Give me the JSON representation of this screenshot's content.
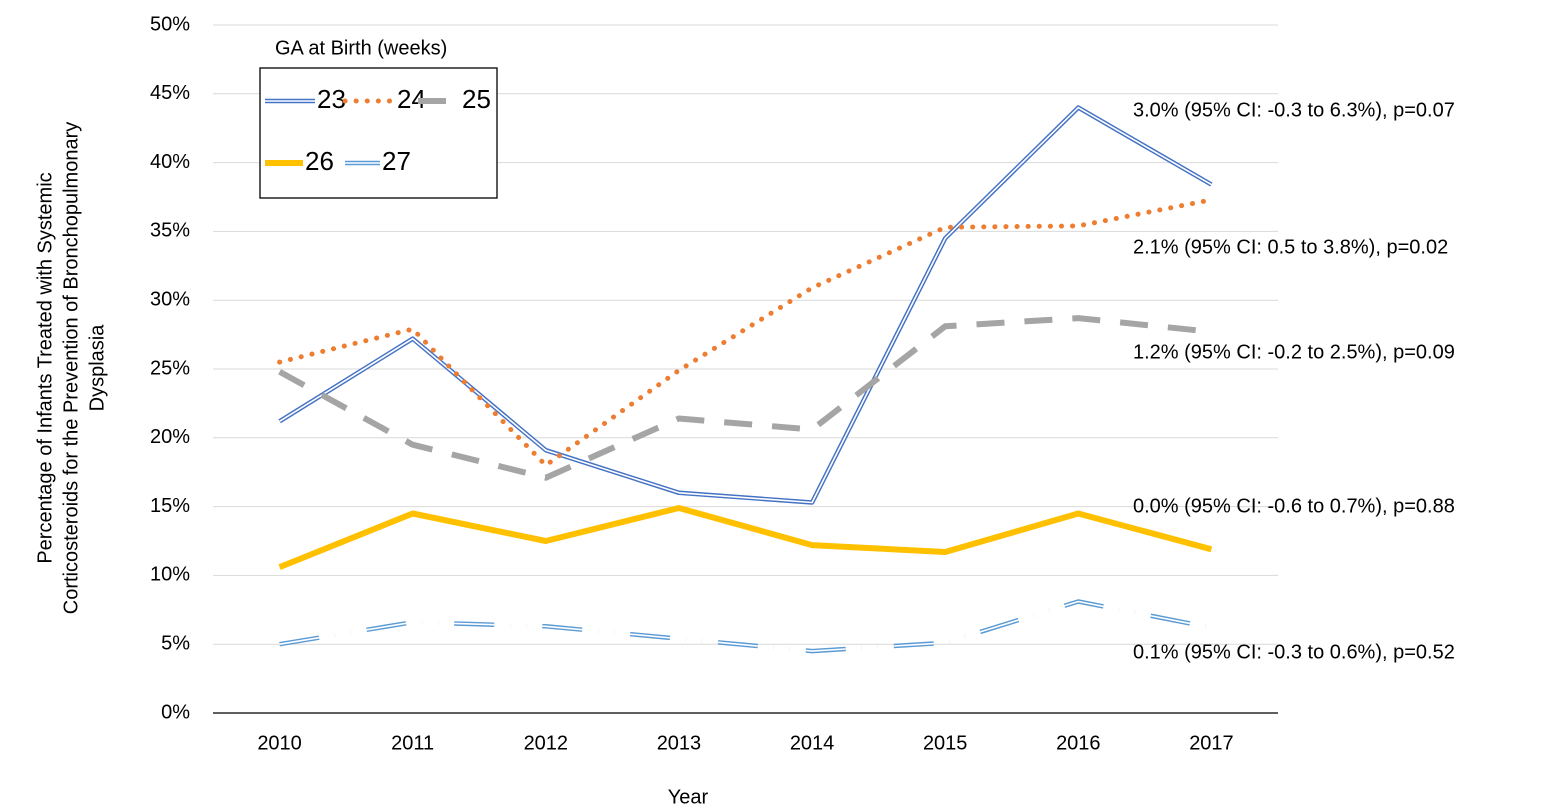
{
  "chart_data": {
    "type": "line",
    "xlabel": "Year",
    "ylabel": [
      "Percentage of Infants Treated with Systemic",
      "Corticosteroids for the Prevention of Bronchopulmonary",
      "Dysplasia"
    ],
    "categories": [
      "2010",
      "2011",
      "2012",
      "2013",
      "2014",
      "2015",
      "2016",
      "2017"
    ],
    "ylim": [
      0,
      50
    ],
    "yticks": [
      {
        "value": 0,
        "label": "0%"
      },
      {
        "value": 5,
        "label": "5%"
      },
      {
        "value": 10,
        "label": "10%"
      },
      {
        "value": 15,
        "label": "15%"
      },
      {
        "value": 20,
        "label": "20%"
      },
      {
        "value": 25,
        "label": "25%"
      },
      {
        "value": 30,
        "label": "30%"
      },
      {
        "value": 35,
        "label": "35%"
      },
      {
        "value": 40,
        "label": "40%"
      },
      {
        "value": 45,
        "label": "45%"
      },
      {
        "value": 50,
        "label": "50%"
      }
    ],
    "grid": true,
    "legend_title": "GA at Birth (weeks)",
    "legend_position": "upper left",
    "series": [
      {
        "name": "23",
        "color": "#4472c4",
        "style": "double",
        "values": [
          21.2,
          27.2,
          19.1,
          16.0,
          15.3,
          34.5,
          44.0,
          38.4
        ]
      },
      {
        "name": "24",
        "color": "#ed7d31",
        "style": "dot",
        "values": [
          25.5,
          27.9,
          18.0,
          24.9,
          30.9,
          35.3,
          35.4,
          37.3
        ]
      },
      {
        "name": "25",
        "color": "#a5a5a5",
        "style": "dash",
        "values": [
          24.8,
          19.5,
          17.1,
          21.4,
          20.6,
          28.1,
          28.7,
          27.7
        ]
      },
      {
        "name": "26",
        "color": "#ffc000",
        "style": "solid",
        "values": [
          10.6,
          14.5,
          12.5,
          14.9,
          12.2,
          11.7,
          14.5,
          11.9
        ]
      },
      {
        "name": "27",
        "color": "#5b9bd5",
        "style": "double-dashdot",
        "values": [
          5.0,
          6.6,
          6.3,
          5.4,
          4.5,
          5.1,
          8.1,
          6.2
        ]
      }
    ],
    "annotations": [
      "3.0% (95% CI: -0.3 to 6.3%), p=0.07",
      "2.1% (95% CI: 0.5 to 3.8%), p=0.02",
      "1.2% (95% CI: -0.2 to 2.5%), p=0.09",
      "0.0% (95% CI: -0.6 to 0.7%), p=0.88",
      "0.1% (95% CI: -0.3 to 0.6%), p=0.52"
    ]
  }
}
